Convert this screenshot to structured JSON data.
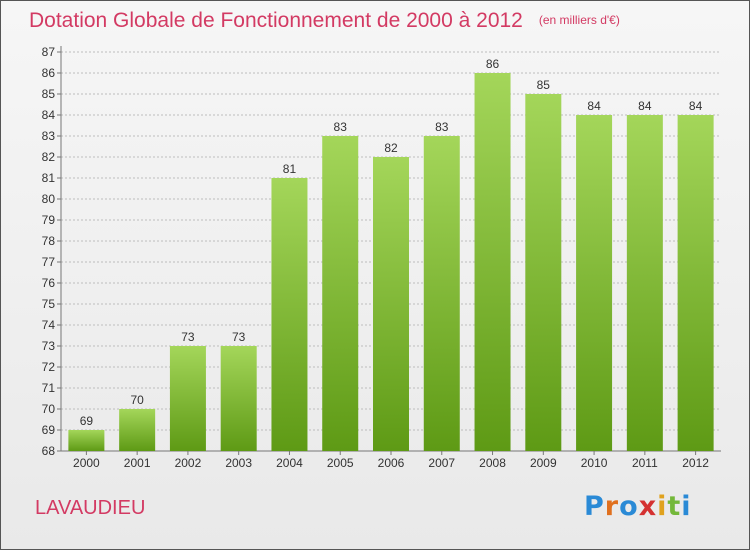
{
  "title": "Dotation Globale de Fonctionnement de 2000 à 2012",
  "unit_note": "(en milliers d'€)",
  "commune": "LAVAUDIEU",
  "logo": "Proxiti",
  "colors": {
    "title": "#d33a63",
    "bar_top": "#a4d65a",
    "bar_bottom": "#5e9a15",
    "grid": "#bdbdbd",
    "axis_text": "#333333"
  },
  "chart_data": {
    "type": "bar",
    "categories": [
      "2000",
      "2001",
      "2002",
      "2003",
      "2004",
      "2005",
      "2006",
      "2007",
      "2008",
      "2009",
      "2010",
      "2011",
      "2012"
    ],
    "values": [
      69,
      70,
      73,
      73,
      81,
      83,
      82,
      83,
      86,
      85,
      84,
      84,
      84
    ],
    "ylim": [
      68,
      87
    ],
    "yticks": [
      68,
      69,
      70,
      71,
      72,
      73,
      74,
      75,
      76,
      77,
      78,
      79,
      80,
      81,
      82,
      83,
      84,
      85,
      86,
      87
    ],
    "grid": true,
    "xlabel": "",
    "ylabel": ""
  }
}
